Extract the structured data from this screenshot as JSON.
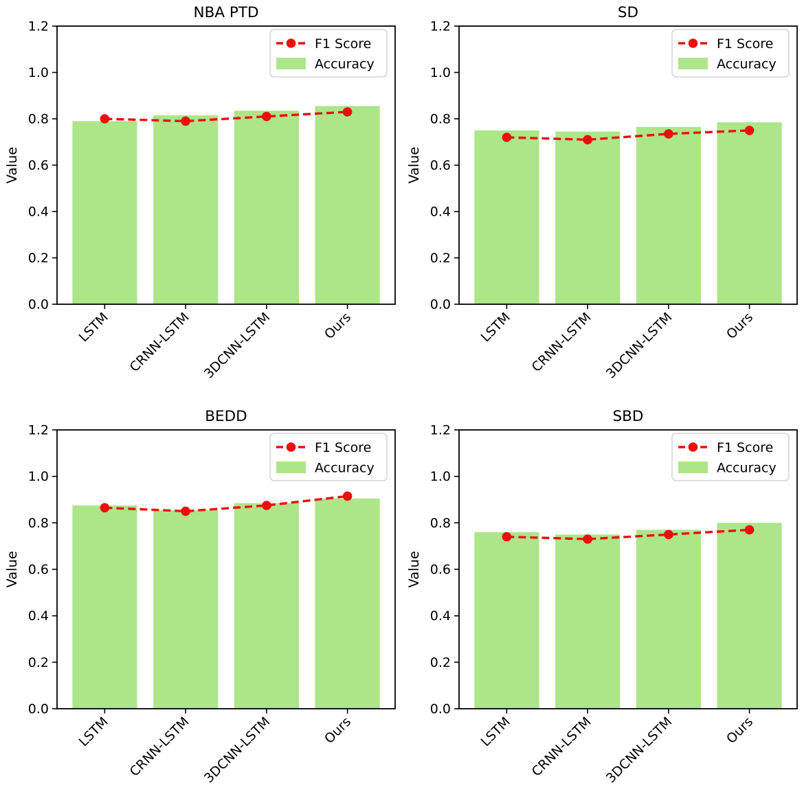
{
  "figure": {
    "background": "#ffffff",
    "text_color": "#000000",
    "accent_colors": {
      "bar_green": "#ade589",
      "line_red": "#ee0d0d",
      "legend_border": "#cccccc",
      "spine_black": "#000000"
    }
  },
  "chart_data": [
    {
      "type": "bar",
      "title": "NBA PTD",
      "categories": [
        "LSTM",
        "CRNN-LSTM",
        "3DCNN-LSTM",
        "Ours"
      ],
      "xlabel": "",
      "ylabel": "Value",
      "ylim": [
        0.0,
        1.2
      ],
      "ytick_labels": [
        "0.0",
        "0.2",
        "0.4",
        "0.6",
        "0.8",
        "1.0",
        "1.2"
      ],
      "grid": false,
      "legend_position": "upper right",
      "series": [
        {
          "name": "Accuracy",
          "type": "bar",
          "color": "#ade589",
          "values": [
            0.79,
            0.815,
            0.835,
            0.855
          ]
        },
        {
          "name": "F1 Score",
          "type": "line",
          "line_style": "dashed",
          "marker": "circle",
          "color": "#ee0d0d",
          "values": [
            0.8,
            0.79,
            0.81,
            0.83
          ]
        }
      ]
    },
    {
      "type": "bar",
      "title": "SD",
      "categories": [
        "LSTM",
        "CRNN-LSTM",
        "3DCNN-LSTM",
        "Ours"
      ],
      "xlabel": "",
      "ylabel": "Value",
      "ylim": [
        0.0,
        1.2
      ],
      "ytick_labels": [
        "0.0",
        "0.2",
        "0.4",
        "0.6",
        "0.8",
        "1.0",
        "1.2"
      ],
      "grid": false,
      "legend_position": "upper right",
      "series": [
        {
          "name": "Accuracy",
          "type": "bar",
          "color": "#ade589",
          "values": [
            0.75,
            0.745,
            0.765,
            0.785
          ]
        },
        {
          "name": "F1 Score",
          "type": "line",
          "line_style": "dashed",
          "marker": "circle",
          "color": "#ee0d0d",
          "values": [
            0.72,
            0.71,
            0.735,
            0.75
          ]
        }
      ]
    },
    {
      "type": "bar",
      "title": "BEDD",
      "categories": [
        "LSTM",
        "CRNN-LSTM",
        "3DCNN-LSTM",
        "Ours"
      ],
      "xlabel": "",
      "ylabel": "Value",
      "ylim": [
        0.0,
        1.2
      ],
      "ytick_labels": [
        "0.0",
        "0.2",
        "0.4",
        "0.6",
        "0.8",
        "1.0",
        "1.2"
      ],
      "grid": false,
      "legend_position": "upper right",
      "series": [
        {
          "name": "Accuracy",
          "type": "bar",
          "color": "#ade589",
          "values": [
            0.875,
            0.855,
            0.885,
            0.905
          ]
        },
        {
          "name": "F1 Score",
          "type": "line",
          "line_style": "dashed",
          "marker": "circle",
          "color": "#ee0d0d",
          "values": [
            0.865,
            0.85,
            0.875,
            0.915
          ]
        }
      ]
    },
    {
      "type": "bar",
      "title": "SBD",
      "categories": [
        "LSTM",
        "CRNN-LSTM",
        "3DCNN-LSTM",
        "Ours"
      ],
      "xlabel": "",
      "ylabel": "Value",
      "ylim": [
        0.0,
        1.2
      ],
      "ytick_labels": [
        "0.0",
        "0.2",
        "0.4",
        "0.6",
        "0.8",
        "1.0",
        "1.2"
      ],
      "grid": false,
      "legend_position": "upper right",
      "series": [
        {
          "name": "Accuracy",
          "type": "bar",
          "color": "#ade589",
          "values": [
            0.76,
            0.75,
            0.77,
            0.8
          ]
        },
        {
          "name": "F1 Score",
          "type": "line",
          "line_style": "dashed",
          "marker": "circle",
          "color": "#ee0d0d",
          "values": [
            0.74,
            0.73,
            0.75,
            0.77
          ]
        }
      ]
    }
  ]
}
